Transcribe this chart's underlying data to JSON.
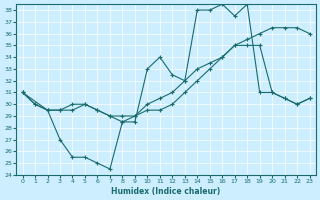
{
  "xlabel": "Humidex (Indice chaleur)",
  "bg_color": "#cceeff",
  "line_color": "#1a6b6b",
  "grid_color": "#ffffff",
  "xlim": [
    -0.5,
    23.5
  ],
  "ylim": [
    24,
    38.5
  ],
  "xticks": [
    0,
    1,
    2,
    3,
    4,
    5,
    6,
    7,
    8,
    9,
    10,
    11,
    12,
    13,
    14,
    15,
    16,
    17,
    18,
    19,
    20,
    21,
    22,
    23
  ],
  "yticks": [
    24,
    25,
    26,
    27,
    28,
    29,
    30,
    31,
    32,
    33,
    34,
    35,
    36,
    37,
    38
  ],
  "line1_x": [
    0,
    1,
    2,
    3,
    4,
    5,
    6,
    7,
    8,
    9,
    10,
    11,
    12,
    13,
    14,
    15,
    16,
    17,
    18,
    19,
    20,
    21,
    22,
    23
  ],
  "line1_y": [
    31,
    30,
    29.5,
    27,
    25.5,
    25.5,
    25,
    24.5,
    28.5,
    28.5,
    33,
    34,
    32.5,
    32,
    38,
    38,
    38.5,
    37.5,
    38.5,
    31,
    31,
    30.5,
    30,
    30.5
  ],
  "line2_x": [
    0,
    1,
    2,
    3,
    4,
    5,
    6,
    7,
    8,
    9,
    10,
    11,
    12,
    13,
    14,
    15,
    16,
    17,
    18,
    19,
    20,
    21,
    22,
    23
  ],
  "line2_y": [
    31,
    30,
    29.5,
    29.5,
    29.5,
    30,
    29.5,
    29,
    28.5,
    29,
    30,
    30.5,
    31,
    32,
    33,
    33.5,
    34,
    35,
    35,
    35,
    31,
    30.5,
    30,
    30.5
  ],
  "line3_x": [
    0,
    2,
    3,
    4,
    5,
    6,
    7,
    8,
    9,
    10,
    11,
    12,
    13,
    14,
    15,
    16,
    17,
    18,
    19,
    20,
    21,
    22,
    23
  ],
  "line3_y": [
    31,
    29.5,
    29.5,
    30,
    30,
    29.5,
    29,
    29,
    29,
    29.5,
    29.5,
    30,
    31,
    32,
    33,
    34,
    35,
    35.5,
    36,
    36.5,
    36.5,
    36.5,
    36
  ]
}
